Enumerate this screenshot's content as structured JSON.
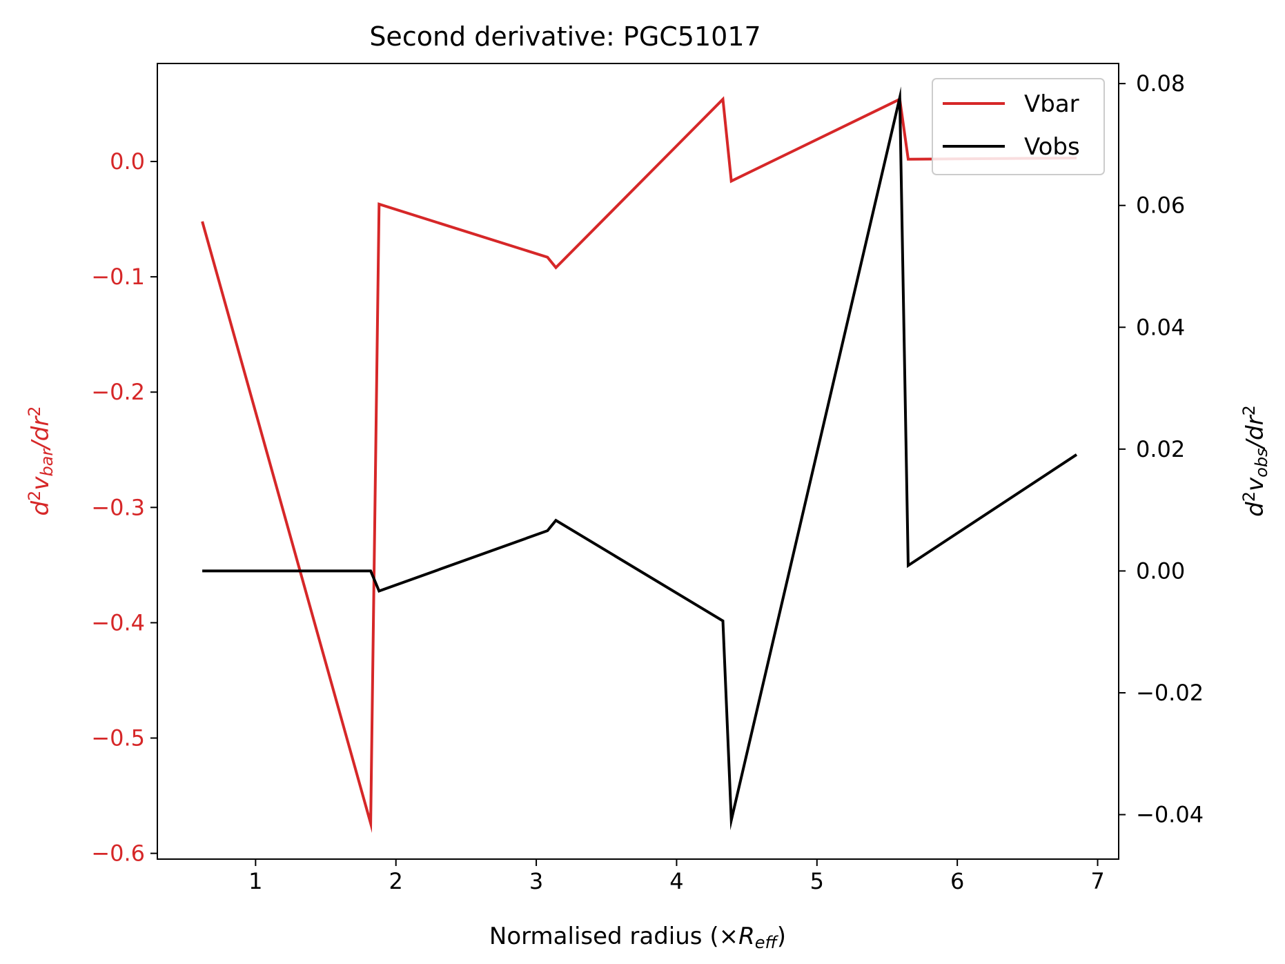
{
  "chart_data": {
    "type": "line",
    "title": "Second derivative: PGC51017",
    "xlabel": {
      "main": "Normalised radius (×",
      "var": "R",
      "sub": "eff",
      "close": ")"
    },
    "ylabel_left": {
      "d": "d",
      "sup": "2",
      "v": "v",
      "sub": "bar",
      "rest": "/dr",
      "sup2": "2"
    },
    "ylabel_right": {
      "d": "d",
      "sup": "2",
      "v": "v",
      "sub": "obs",
      "rest": "/dr",
      "sup2": "2"
    },
    "xlim": [
      0.3,
      7.15
    ],
    "ylim_left": [
      -0.605,
      0.085
    ],
    "ylim_right": [
      -0.0473,
      0.0833
    ],
    "x_ticks": [
      1,
      2,
      3,
      4,
      5,
      6,
      7
    ],
    "y_ticks_left": [
      0.0,
      -0.1,
      -0.2,
      -0.3,
      -0.4,
      -0.5,
      -0.6
    ],
    "y_ticks_left_labels": [
      "0.0",
      "−0.1",
      "−0.2",
      "−0.3",
      "−0.4",
      "−0.5",
      "−0.6"
    ],
    "y_ticks_right": [
      0.08,
      0.06,
      0.04,
      0.02,
      0.0,
      -0.02,
      -0.04
    ],
    "y_ticks_right_labels": [
      "0.08",
      "0.06",
      "0.04",
      "0.02",
      "0.00",
      "−0.02",
      "−0.04"
    ],
    "legend_position": "top-right",
    "series": [
      {
        "name": "Vbar",
        "axis": "left",
        "color": "#d62728",
        "x": [
          0.62,
          1.82,
          1.88,
          3.08,
          3.14,
          4.33,
          4.39,
          5.59,
          5.65,
          6.85
        ],
        "y": [
          -0.052,
          -0.574,
          -0.037,
          -0.083,
          -0.092,
          0.054,
          -0.017,
          0.054,
          0.002,
          0.003
        ]
      },
      {
        "name": "Vobs",
        "axis": "right",
        "color": "#000000",
        "x": [
          0.62,
          1.82,
          1.88,
          3.08,
          3.14,
          4.33,
          4.39,
          5.59,
          5.65,
          6.85
        ],
        "y": [
          0.0,
          0.0,
          -0.0033,
          0.0066,
          0.0083,
          -0.0082,
          -0.0409,
          0.0777,
          0.0009,
          0.0191
        ]
      }
    ],
    "grid": false
  }
}
